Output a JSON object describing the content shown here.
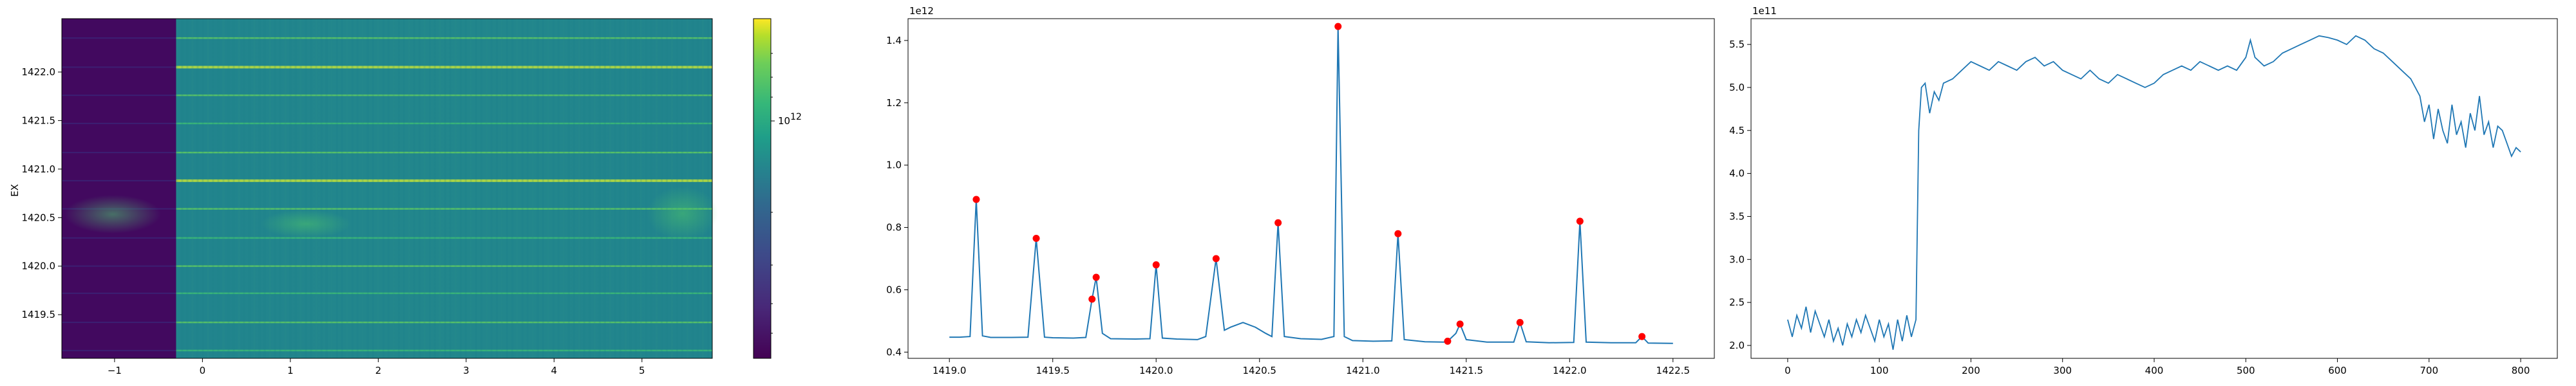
{
  "colors": {
    "series": "#1f77b4",
    "peak_marker": "#ff0000",
    "viridis_low": "#440154",
    "viridis_mid": "#21918c",
    "viridis_high": "#fde725"
  },
  "chart_data": [
    {
      "type": "heatmap",
      "ylabel": "EX",
      "xlabel": "",
      "xlim": [
        -1.6,
        5.8
      ],
      "ylim": [
        1419.05,
        1422.55
      ],
      "x_ticks": [
        "−1",
        "0",
        "1",
        "2",
        "3",
        "4",
        "5"
      ],
      "x_tick_values": [
        -1,
        0,
        1,
        2,
        3,
        4,
        5
      ],
      "y_ticks": [
        "1419.5",
        "1420.0",
        "1420.5",
        "1421.0",
        "1421.5",
        "1422.0"
      ],
      "y_tick_values": [
        1419.5,
        1420.0,
        1420.5,
        1421.0,
        1421.5,
        1422.0
      ],
      "dark_region_x": [
        -1.6,
        -0.3
      ],
      "bright_lines_y": [
        1419.13,
        1419.42,
        1419.72,
        1420.0,
        1420.29,
        1420.59,
        1420.88,
        1421.17,
        1421.47,
        1421.76,
        1422.05,
        1422.35
      ],
      "colorbar": {
        "scale": "log",
        "tick_label": "10",
        "tick_exponent": "12"
      }
    },
    {
      "type": "line",
      "exponent_base": "1e",
      "exponent_power": "12",
      "xlim": [
        1418.8,
        1422.7
      ],
      "ylim": [
        0.38,
        1.47
      ],
      "x_ticks": [
        "1419.0",
        "1419.5",
        "1420.0",
        "1420.5",
        "1421.0",
        "1421.5",
        "1422.0",
        "1422.5"
      ],
      "x_tick_values": [
        1419.0,
        1419.5,
        1420.0,
        1420.5,
        1421.0,
        1421.5,
        1422.0,
        1422.5
      ],
      "y_ticks": [
        "0.4",
        "0.6",
        "0.8",
        "1.0",
        "1.2",
        "1.4"
      ],
      "y_tick_values": [
        0.4,
        0.6,
        0.8,
        1.0,
        1.2,
        1.4
      ],
      "series": [
        {
          "x": [
            1419.0,
            1419.05,
            1419.1,
            1419.13,
            1419.16,
            1419.2,
            1419.3,
            1419.38,
            1419.42,
            1419.46,
            1419.5,
            1419.6,
            1419.66,
            1419.69,
            1419.71,
            1419.74,
            1419.78,
            1419.9,
            1419.97,
            1420.0,
            1420.03,
            1420.1,
            1420.2,
            1420.24,
            1420.29,
            1420.33,
            1420.36,
            1420.42,
            1420.48,
            1420.53,
            1420.56,
            1420.59,
            1420.62,
            1420.7,
            1420.8,
            1420.86,
            1420.88,
            1420.91,
            1420.95,
            1421.05,
            1421.14,
            1421.17,
            1421.2,
            1421.3,
            1421.39,
            1421.41,
            1421.45,
            1421.47,
            1421.5,
            1421.6,
            1421.73,
            1421.76,
            1421.79,
            1421.9,
            1422.02,
            1422.05,
            1422.08,
            1422.2,
            1422.32,
            1422.35,
            1422.38,
            1422.5
          ],
          "y": [
            0.448,
            0.448,
            0.45,
            0.89,
            0.452,
            0.447,
            0.447,
            0.448,
            0.765,
            0.448,
            0.446,
            0.445,
            0.447,
            0.57,
            0.64,
            0.46,
            0.443,
            0.442,
            0.443,
            0.68,
            0.445,
            0.442,
            0.44,
            0.45,
            0.7,
            0.47,
            0.48,
            0.495,
            0.48,
            0.46,
            0.45,
            0.815,
            0.45,
            0.443,
            0.441,
            0.45,
            1.445,
            0.45,
            0.437,
            0.435,
            0.436,
            0.78,
            0.44,
            0.433,
            0.432,
            0.435,
            0.46,
            0.49,
            0.44,
            0.432,
            0.432,
            0.495,
            0.433,
            0.43,
            0.431,
            0.82,
            0.432,
            0.43,
            0.43,
            0.45,
            0.429,
            0.428
          ]
        }
      ],
      "peaks": {
        "x": [
          1419.13,
          1419.42,
          1419.69,
          1419.71,
          1420.0,
          1420.29,
          1420.59,
          1420.88,
          1421.17,
          1421.41,
          1421.47,
          1421.76,
          1422.05,
          1422.35
        ],
        "y": [
          0.89,
          0.765,
          0.57,
          0.64,
          0.68,
          0.7,
          0.815,
          1.445,
          0.78,
          0.435,
          0.49,
          0.495,
          0.82,
          0.45
        ]
      }
    },
    {
      "type": "line",
      "exponent_base": "1e",
      "exponent_power": "11",
      "xlim": [
        -40,
        840
      ],
      "ylim": [
        1.85,
        5.8
      ],
      "x_ticks": [
        "0",
        "100",
        "200",
        "300",
        "400",
        "500",
        "600",
        "700",
        "800"
      ],
      "x_tick_values": [
        0,
        100,
        200,
        300,
        400,
        500,
        600,
        700,
        800
      ],
      "y_ticks": [
        "2.0",
        "2.5",
        "3.0",
        "3.5",
        "4.0",
        "4.5",
        "5.0",
        "5.5"
      ],
      "y_tick_values": [
        2.0,
        2.5,
        3.0,
        3.5,
        4.0,
        4.5,
        5.0,
        5.5
      ],
      "series": [
        {
          "x": [
            0,
            5,
            10,
            15,
            20,
            25,
            30,
            35,
            40,
            45,
            50,
            55,
            60,
            65,
            70,
            75,
            80,
            85,
            90,
            95,
            100,
            105,
            110,
            115,
            120,
            125,
            130,
            135,
            140,
            143,
            146,
            150,
            155,
            160,
            165,
            170,
            180,
            190,
            200,
            210,
            220,
            230,
            240,
            250,
            260,
            270,
            280,
            290,
            300,
            310,
            320,
            330,
            340,
            350,
            360,
            370,
            380,
            390,
            400,
            410,
            420,
            430,
            440,
            450,
            460,
            470,
            480,
            490,
            500,
            505,
            510,
            515,
            520,
            530,
            540,
            550,
            560,
            570,
            580,
            590,
            600,
            610,
            620,
            630,
            640,
            650,
            660,
            670,
            680,
            690,
            695,
            700,
            705,
            710,
            715,
            720,
            725,
            730,
            735,
            740,
            745,
            750,
            755,
            760,
            765,
            770,
            775,
            780,
            785,
            790,
            795,
            800
          ],
          "y": [
            2.3,
            2.1,
            2.35,
            2.2,
            2.45,
            2.15,
            2.4,
            2.25,
            2.1,
            2.3,
            2.05,
            2.2,
            2.0,
            2.25,
            2.1,
            2.3,
            2.15,
            2.35,
            2.2,
            2.05,
            2.3,
            2.1,
            2.25,
            1.95,
            2.3,
            2.05,
            2.35,
            2.1,
            2.3,
            4.5,
            5.0,
            5.05,
            4.7,
            4.95,
            4.85,
            5.05,
            5.1,
            5.2,
            5.3,
            5.25,
            5.2,
            5.3,
            5.25,
            5.2,
            5.3,
            5.35,
            5.25,
            5.3,
            5.2,
            5.15,
            5.1,
            5.2,
            5.1,
            5.05,
            5.15,
            5.1,
            5.05,
            5.0,
            5.05,
            5.15,
            5.2,
            5.25,
            5.2,
            5.3,
            5.25,
            5.2,
            5.25,
            5.2,
            5.35,
            5.55,
            5.35,
            5.3,
            5.25,
            5.3,
            5.4,
            5.45,
            5.5,
            5.55,
            5.6,
            5.58,
            5.55,
            5.5,
            5.6,
            5.55,
            5.45,
            5.4,
            5.3,
            5.2,
            5.1,
            4.9,
            4.6,
            4.8,
            4.4,
            4.75,
            4.5,
            4.35,
            4.8,
            4.45,
            4.6,
            4.3,
            4.7,
            4.5,
            4.9,
            4.45,
            4.6,
            4.3,
            4.55,
            4.5,
            4.35,
            4.2,
            4.3,
            4.25
          ]
        }
      ]
    }
  ]
}
